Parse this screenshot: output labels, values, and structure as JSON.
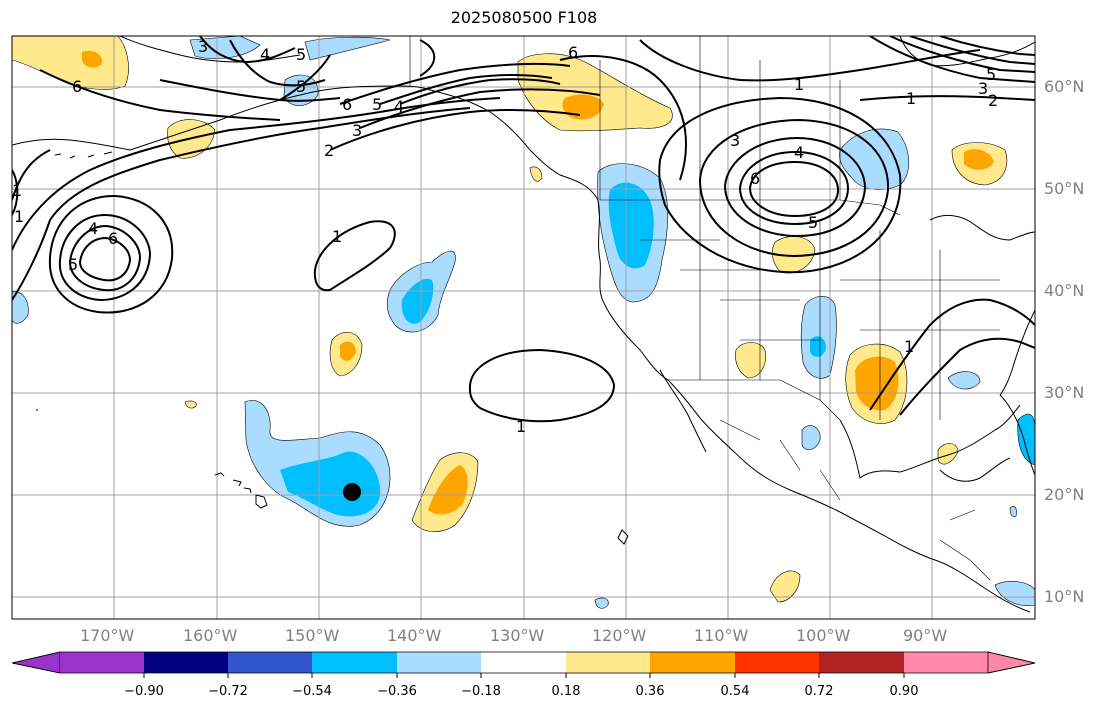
{
  "title": "2025080500 F108",
  "lon_labels": [
    "170°W",
    "160°W",
    "150°W",
    "140°W",
    "130°W",
    "120°W",
    "110°W",
    "100°W",
    "90°W"
  ],
  "lat_labels": [
    "60°N",
    "50°N",
    "40°N",
    "30°N",
    "20°N",
    "10°N"
  ],
  "colorbar": {
    "ticks": [
      "−0.90",
      "−0.72",
      "−0.54",
      "−0.36",
      "−0.18",
      "0.18",
      "0.36",
      "0.54",
      "0.72",
      "0.90"
    ],
    "colors": [
      "#9933cc",
      "#000080",
      "#3355cc",
      "#00bfff",
      "#aadcff",
      "#ffffff",
      "#ffe98c",
      "#ffa500",
      "#ff3300",
      "#b22222",
      "#ff88aa"
    ],
    "extend": "both"
  },
  "contour_labels": [
    "6",
    "4",
    "5",
    "3",
    "5",
    "6",
    "5",
    "4",
    "3",
    "2",
    "1",
    "6",
    "1",
    "3",
    "5",
    "2",
    "1",
    "3",
    "4",
    "6",
    "5",
    "1",
    "1",
    "5",
    "4",
    "6",
    "1",
    "1"
  ],
  "marker": {
    "type": "black-dot",
    "lon": "146.5°W",
    "lat": "20.3°N"
  }
}
